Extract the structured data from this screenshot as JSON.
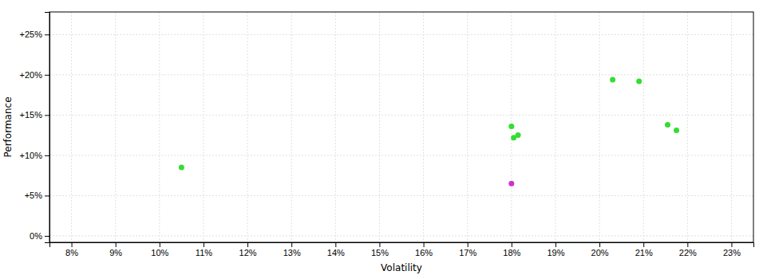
{
  "chart_data": {
    "type": "scatter",
    "xlabel": "Volatility",
    "ylabel": "Performance",
    "x": [
      0.105,
      0.18,
      0.1815,
      0.1805,
      0.203,
      0.209,
      0.2155,
      0.2175,
      0.18
    ],
    "values": [
      0.085,
      0.136,
      0.125,
      0.122,
      0.194,
      0.192,
      0.138,
      0.131,
      0.065
    ],
    "colors": [
      "#33dd33",
      "#33dd33",
      "#33dd33",
      "#33dd33",
      "#33dd33",
      "#33dd33",
      "#33dd33",
      "#33dd33",
      "#cc33cc"
    ],
    "xlim": [
      0.075,
      0.235
    ],
    "ylim": [
      -0.008,
      0.278
    ],
    "xticks": [
      {
        "value": 0.08,
        "label": "8%"
      },
      {
        "value": 0.09,
        "label": "9%"
      },
      {
        "value": 0.1,
        "label": "10%"
      },
      {
        "value": 0.11,
        "label": "11%"
      },
      {
        "value": 0.12,
        "label": "12%"
      },
      {
        "value": 0.13,
        "label": "13%"
      },
      {
        "value": 0.14,
        "label": "14%"
      },
      {
        "value": 0.15,
        "label": "15%"
      },
      {
        "value": 0.16,
        "label": "16%"
      },
      {
        "value": 0.17,
        "label": "17%"
      },
      {
        "value": 0.18,
        "label": "18%"
      },
      {
        "value": 0.19,
        "label": "19%"
      },
      {
        "value": 0.2,
        "label": "20%"
      },
      {
        "value": 0.21,
        "label": "21%"
      },
      {
        "value": 0.22,
        "label": "22%"
      },
      {
        "value": 0.23,
        "label": "23%"
      }
    ],
    "yticks": [
      {
        "value": 0.0,
        "label": "0%"
      },
      {
        "value": 0.05,
        "label": "+5%"
      },
      {
        "value": 0.1,
        "label": "+10%"
      },
      {
        "value": 0.15,
        "label": "+15%"
      },
      {
        "value": 0.2,
        "label": "+20%"
      },
      {
        "value": 0.25,
        "label": "+25%"
      }
    ],
    "grid": true
  }
}
